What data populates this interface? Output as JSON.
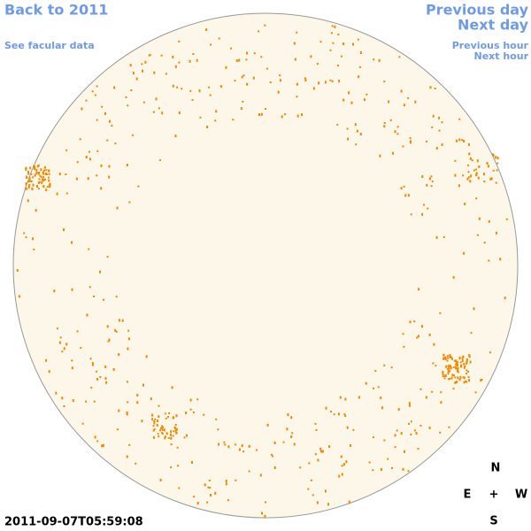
{
  "nav": {
    "back_year": "Back to 2011",
    "facular_link": "See facular data",
    "previous_day": "Previous day",
    "next_day": "Next day",
    "previous_hour": "Previous hour",
    "next_hour": "Next hour"
  },
  "timestamp": "2011-09-07T05:59:08",
  "compass": {
    "north": "N",
    "east": "E",
    "center": "+",
    "west": "W",
    "south": "S"
  }
}
